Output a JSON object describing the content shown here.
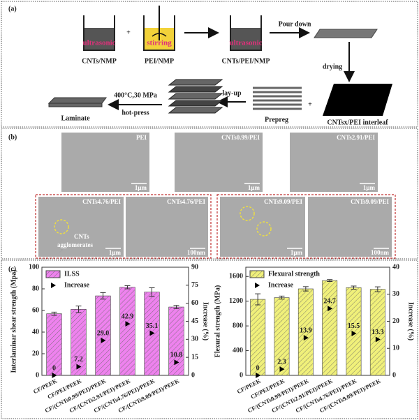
{
  "panel_a": {
    "label": "(a)",
    "ultrasonic_1": "ultrasonic",
    "stirring": "stirring",
    "ultrasonic_2": "ultrasonic",
    "cnts_nmp": "CNTs/NMP",
    "plus_1": "+",
    "pei_nmp": "PEI/NMP",
    "cnts_pei_nmp": "CNTs/PEI/NMP",
    "pour_down": "Pour down",
    "drying": "drying",
    "interleaf": "CNTsx/PEI interleaf",
    "plus_2": "+",
    "prepreg": "Prepreg",
    "lay_up": "lay-up",
    "conditions": "400°C,30 MPa",
    "hot_press": "hot-press",
    "laminate": "Laminate"
  },
  "panel_b": {
    "label": "(b)",
    "images": [
      {
        "label": "PEI",
        "scale": "1μm"
      },
      {
        "label": "CNTs0.99/PEI",
        "scale": "1μm"
      },
      {
        "label": "CNTs2.91/PEI",
        "scale": "1μm"
      },
      {
        "label": "CNTs4.76/PEI",
        "scale": "1μm"
      },
      {
        "label": "CNTs4.76/PEI",
        "scale": "100nm"
      },
      {
        "label": "CNTs9.09/PEI",
        "scale": "1μm"
      },
      {
        "label": "CNTs9.09/PEI",
        "scale": "100nm"
      }
    ],
    "annotation": [
      "CNTs",
      "agglomerates"
    ]
  },
  "panel_c": {
    "label": "(c)"
  },
  "chart_data": [
    {
      "type": "bar",
      "ylabel": "Interlaminar shear strength (Mpa)",
      "y2label": "Increase (%)",
      "categories": [
        "CF/PEEK",
        "CF/PEI/PEEK",
        "CF/(CNTs0.99/PEI)/PEEK",
        "CF/(CNTs2.91/PEI)/PEEK",
        "CF/(CNTs4.76/PEI)/PEEK",
        "CF/(CNTs9.09/PEI)/PEEK"
      ],
      "series": [
        {
          "name": "ILSS",
          "color": "#ee82ee",
          "values": [
            57,
            61.1,
            73.5,
            81.5,
            77,
            63.2
          ],
          "errors": [
            1.5,
            3,
            3,
            1.5,
            4,
            1.5
          ]
        },
        {
          "name": "Increase",
          "type": "scatter",
          "axis": "y2",
          "color": "#000000",
          "values": [
            0,
            7.2,
            29.0,
            42.9,
            35.1,
            10.8
          ],
          "value_labels": [
            "0",
            "7.2",
            "29.0",
            "42.9",
            "35.1",
            "10.8"
          ]
        }
      ],
      "ylim": [
        0,
        100
      ],
      "yticks": [
        0,
        20,
        40,
        60,
        80,
        100
      ],
      "y2lim": [
        0,
        90
      ],
      "y2ticks": [
        0,
        15,
        30,
        45,
        60,
        75,
        90
      ],
      "legend": "upper left"
    },
    {
      "type": "bar",
      "ylabel": "Flexural strength (MPa)",
      "y2label": "Increase (%)",
      "categories": [
        "CF/PEEK",
        "CF/PEI/PEEK",
        "CF/(CNTs0.99/PEI)/PEEK",
        "CF/(CNTs2.91/PEI)/PEEK",
        "CF/(CNTs4.76/PEI)/PEEK",
        "CF/(CNTs9.09/PEI)/PEEK"
      ],
      "series": [
        {
          "name": "Flexural strength",
          "color": "#f0f07a",
          "values": [
            1230,
            1258,
            1400,
            1534,
            1420,
            1393
          ],
          "errors": [
            90,
            25,
            35,
            15,
            25,
            40
          ]
        },
        {
          "name": "Increase",
          "type": "scatter",
          "axis": "y2",
          "color": "#000000",
          "values": [
            0,
            2.3,
            13.9,
            24.7,
            15.5,
            13.3
          ],
          "value_labels": [
            "0",
            "2.3",
            "13.9",
            "24.7",
            "15.5",
            "13.3"
          ]
        }
      ],
      "ylim": [
        0,
        1750
      ],
      "yticks": [
        0,
        400,
        800,
        1200,
        1600
      ],
      "y2lim": [
        0,
        40
      ],
      "y2ticks": [
        0,
        10,
        20,
        30,
        40
      ],
      "legend": "upper left"
    }
  ]
}
